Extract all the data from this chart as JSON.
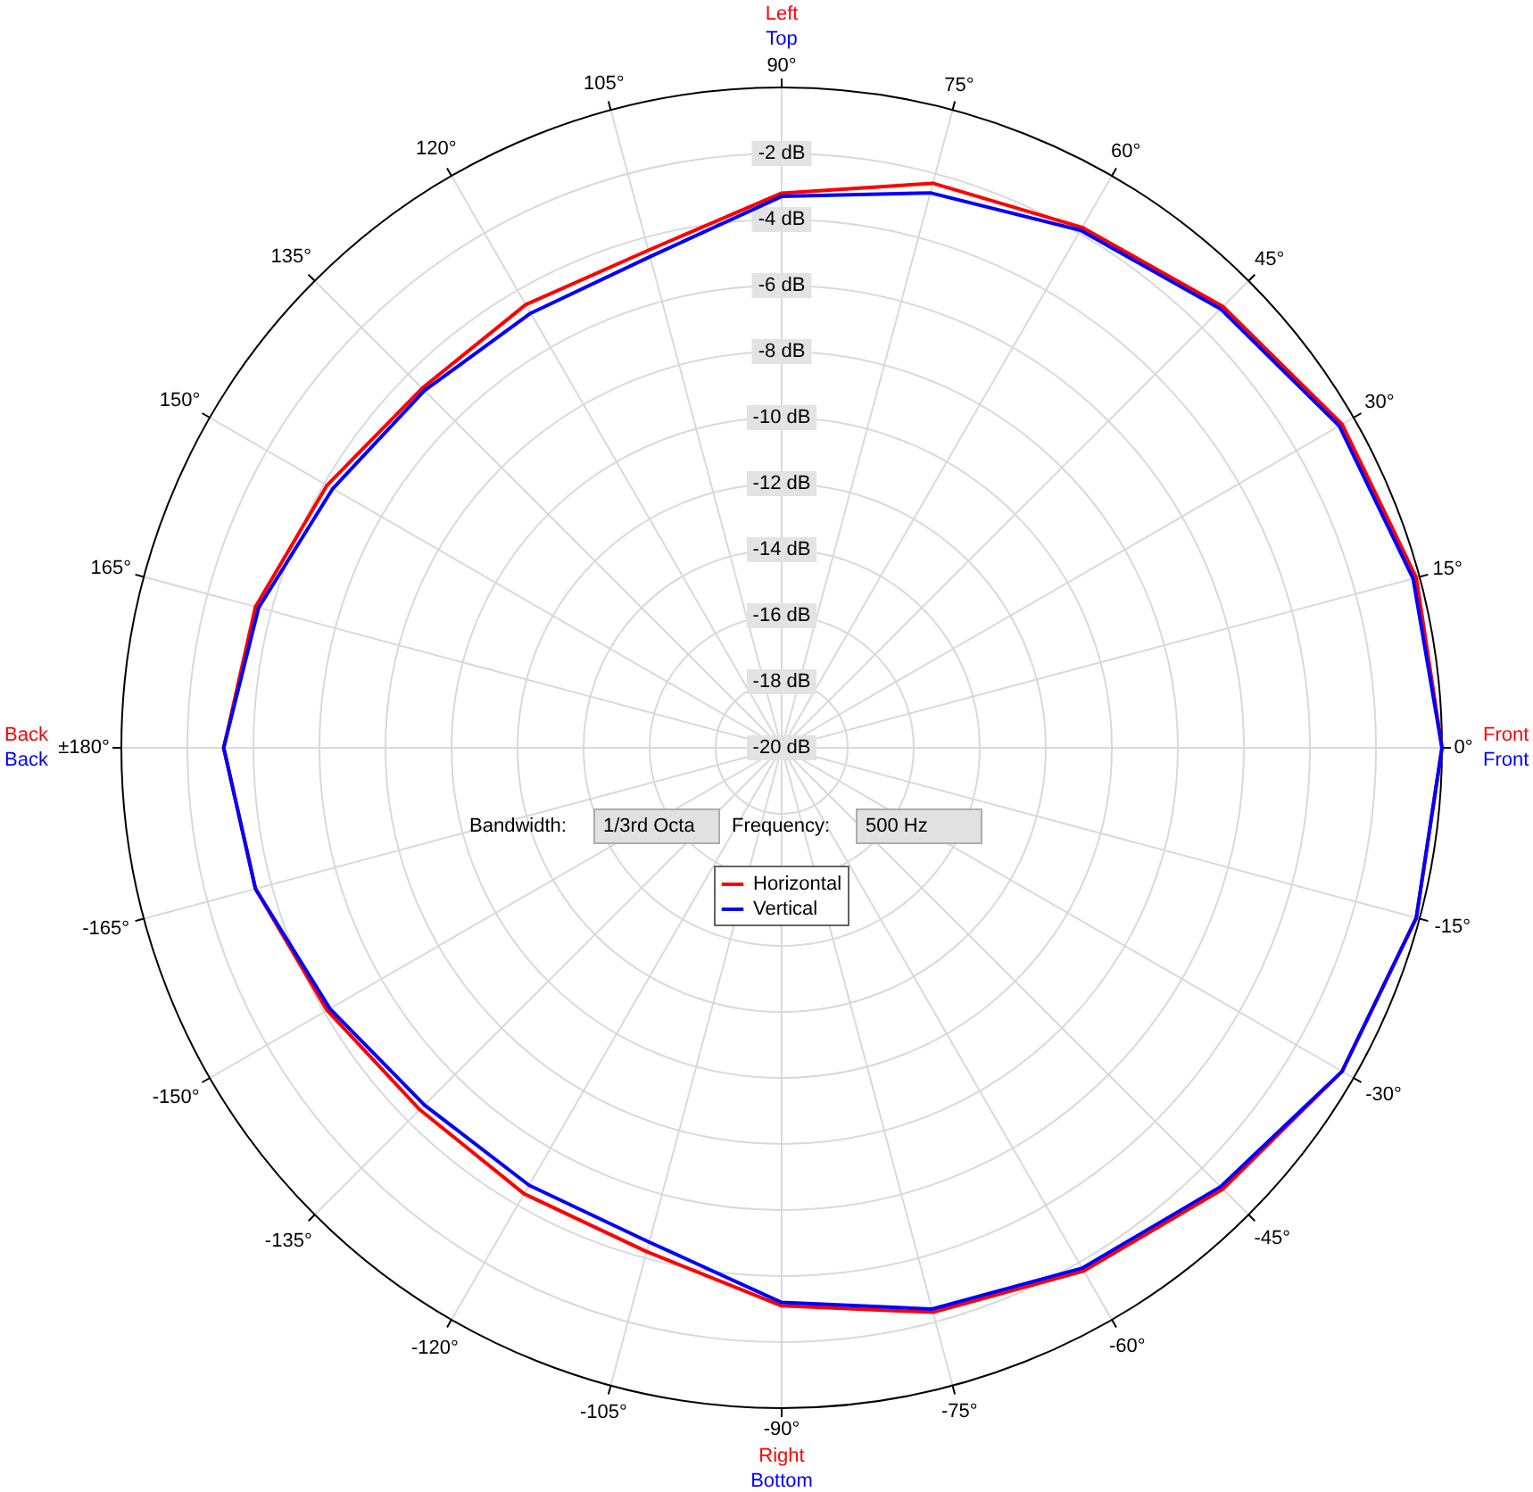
{
  "chart_data": {
    "type": "radar",
    "categories": [
      "90°",
      "75°",
      "60°",
      "45°",
      "30°",
      "15°",
      "0°",
      "-15°",
      "-30°",
      "-45°",
      "-60°",
      "-75°",
      "-90°",
      "-105°",
      "-120°",
      "-135°",
      "-150°",
      "-165°",
      "±180°",
      "165°",
      "150°",
      "135°",
      "120°",
      "105°"
    ],
    "series": [
      {
        "name": "Horizontal",
        "color": "#ff0000",
        "values": [
          -3.2,
          -2.3,
          -1.8,
          -1.1,
          -0.4,
          -0.1,
          0,
          -0.1,
          -0.4,
          -1.1,
          -1.7,
          -2.3,
          -3.1,
          -4.2,
          -4.4,
          -4.5,
          -4.1,
          -3.5,
          -3.1,
          -3.5,
          -4.1,
          -4.6,
          -4.5,
          -4.4
        ]
      },
      {
        "name": "Vertical",
        "color": "#0000ff",
        "values": [
          -3.3,
          -2.6,
          -1.9,
          -1.2,
          -0.5,
          -0.2,
          0,
          -0.1,
          -0.4,
          -1.2,
          -1.8,
          -2.4,
          -3.2,
          -4.5,
          -4.7,
          -4.7,
          -4.2,
          -3.5,
          -3.1,
          -3.6,
          -4.3,
          -4.7,
          -4.8,
          -4.6
        ]
      }
    ],
    "ylim": [
      -20,
      0
    ],
    "yticks": [
      {
        "value": -20,
        "label": "-20 dB"
      },
      {
        "value": -18,
        "label": "-18 dB"
      },
      {
        "value": -16,
        "label": "-16 dB"
      },
      {
        "value": -14,
        "label": "-14 dB"
      },
      {
        "value": -12,
        "label": "-12 dB"
      },
      {
        "value": -10,
        "label": "-10 dB"
      },
      {
        "value": -8,
        "label": "-8 dB"
      },
      {
        "value": -6,
        "label": "-6 dB"
      },
      {
        "value": -4,
        "label": "-4 dB"
      },
      {
        "value": -2,
        "label": "-2 dB"
      }
    ],
    "grid": true,
    "legend": "center",
    "line_style": "solid",
    "annotations": [
      {
        "text": "Left",
        "x": "90°"
      },
      {
        "text": "Top",
        "x": "90°"
      },
      {
        "text": "Front",
        "x": "0°"
      },
      {
        "text": "Front",
        "x": "0°"
      },
      {
        "text": "Right",
        "x": "-90°"
      },
      {
        "text": "Bottom",
        "x": "-90°"
      },
      {
        "text": "Back",
        "x": "±180°"
      },
      {
        "text": "Back",
        "x": "±180°"
      },
      "Bandwidth:",
      "1/3rd Octa",
      "Frequency:",
      "500 Hz"
    ]
  }
}
